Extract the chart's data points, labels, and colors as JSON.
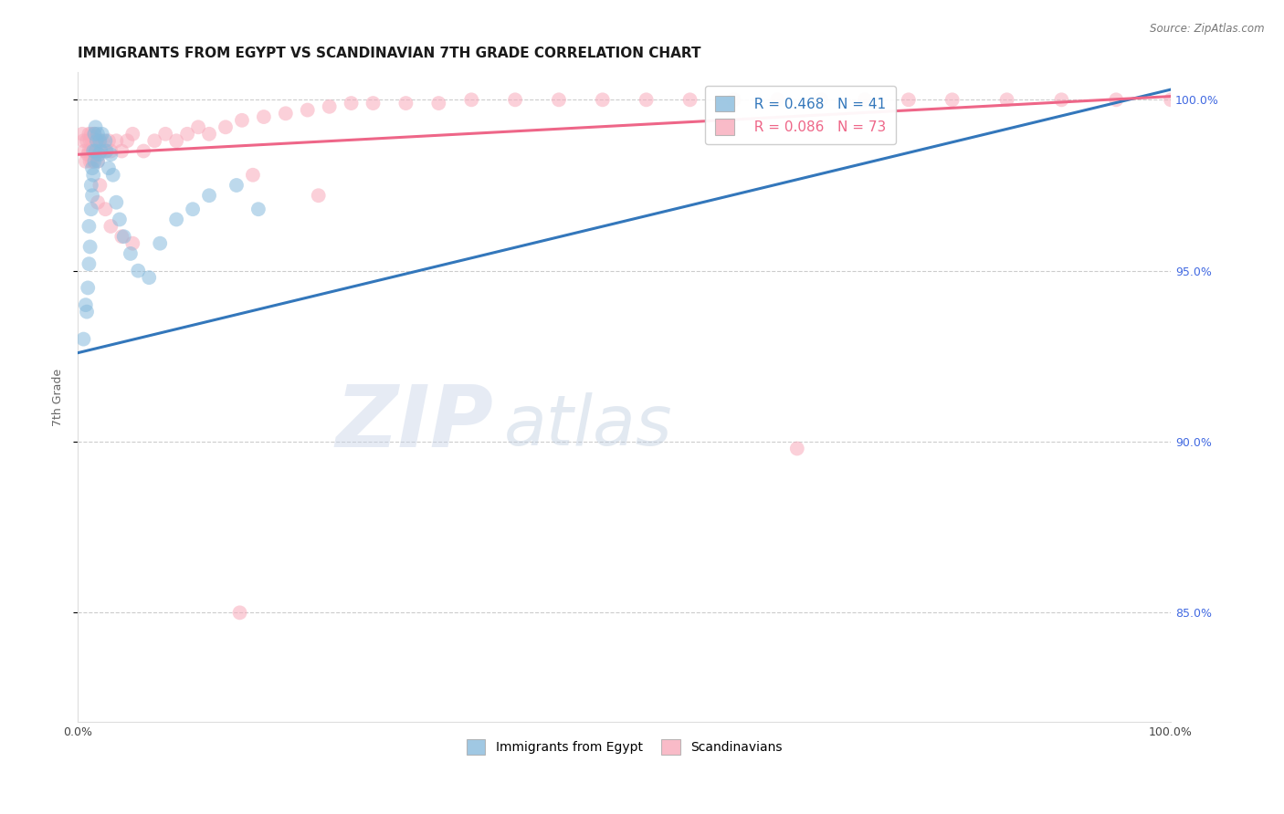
{
  "title": "IMMIGRANTS FROM EGYPT VS SCANDINAVIAN 7TH GRADE CORRELATION CHART",
  "source": "Source: ZipAtlas.com",
  "ylabel": "7th Grade",
  "xlim": [
    0.0,
    1.0
  ],
  "ylim": [
    0.818,
    1.008
  ],
  "yticks": [
    0.85,
    0.9,
    0.95,
    1.0
  ],
  "ytick_labels": [
    "85.0%",
    "90.0%",
    "95.0%",
    "100.0%"
  ],
  "legend_r_egypt": "R = 0.468",
  "legend_n_egypt": "N = 41",
  "legend_r_scand": "R = 0.086",
  "legend_n_scand": "N = 73",
  "egypt_color": "#88bbdd",
  "scand_color": "#f8aabb",
  "egypt_line_color": "#3377bb",
  "scand_line_color": "#ee6688",
  "egypt_line": [
    [
      0.0,
      0.926
    ],
    [
      1.0,
      1.003
    ]
  ],
  "scand_line": [
    [
      0.0,
      0.984
    ],
    [
      1.0,
      1.001
    ]
  ],
  "egypt_dots_x": [
    0.005,
    0.007,
    0.008,
    0.009,
    0.01,
    0.01,
    0.011,
    0.012,
    0.012,
    0.013,
    0.013,
    0.014,
    0.014,
    0.015,
    0.015,
    0.016,
    0.016,
    0.017,
    0.018,
    0.018,
    0.019,
    0.02,
    0.021,
    0.022,
    0.025,
    0.026,
    0.028,
    0.03,
    0.032,
    0.035,
    0.038,
    0.042,
    0.048,
    0.055,
    0.065,
    0.075,
    0.09,
    0.105,
    0.12,
    0.145,
    0.165
  ],
  "egypt_dots_y": [
    0.93,
    0.94,
    0.938,
    0.945,
    0.952,
    0.963,
    0.957,
    0.968,
    0.975,
    0.972,
    0.98,
    0.978,
    0.985,
    0.982,
    0.99,
    0.985,
    0.992,
    0.988,
    0.99,
    0.982,
    0.984,
    0.988,
    0.985,
    0.99,
    0.988,
    0.985,
    0.98,
    0.984,
    0.978,
    0.97,
    0.965,
    0.96,
    0.955,
    0.95,
    0.948,
    0.958,
    0.965,
    0.968,
    0.972,
    0.975,
    0.968
  ],
  "scand_dots_x": [
    0.004,
    0.005,
    0.006,
    0.007,
    0.008,
    0.009,
    0.01,
    0.01,
    0.011,
    0.011,
    0.012,
    0.012,
    0.013,
    0.013,
    0.014,
    0.015,
    0.015,
    0.016,
    0.017,
    0.018,
    0.019,
    0.02,
    0.022,
    0.025,
    0.028,
    0.03,
    0.035,
    0.04,
    0.045,
    0.05,
    0.06,
    0.07,
    0.08,
    0.09,
    0.1,
    0.11,
    0.12,
    0.135,
    0.15,
    0.17,
    0.19,
    0.21,
    0.23,
    0.25,
    0.27,
    0.3,
    0.33,
    0.36,
    0.4,
    0.44,
    0.48,
    0.52,
    0.56,
    0.6,
    0.64,
    0.68,
    0.72,
    0.76,
    0.8,
    0.85,
    0.9,
    0.95,
    1.0,
    0.148,
    0.658,
    0.02,
    0.025,
    0.03,
    0.018,
    0.04,
    0.05,
    0.16,
    0.22
  ],
  "scand_dots_y": [
    0.99,
    0.988,
    0.985,
    0.982,
    0.988,
    0.984,
    0.99,
    0.985,
    0.988,
    0.982,
    0.99,
    0.985,
    0.988,
    0.982,
    0.985,
    0.99,
    0.984,
    0.988,
    0.985,
    0.982,
    0.988,
    0.985,
    0.988,
    0.985,
    0.988,
    0.985,
    0.988,
    0.985,
    0.988,
    0.99,
    0.985,
    0.988,
    0.99,
    0.988,
    0.99,
    0.992,
    0.99,
    0.992,
    0.994,
    0.995,
    0.996,
    0.997,
    0.998,
    0.999,
    0.999,
    0.999,
    0.999,
    1.0,
    1.0,
    1.0,
    1.0,
    1.0,
    1.0,
    1.0,
    1.0,
    1.0,
    1.0,
    1.0,
    1.0,
    1.0,
    1.0,
    1.0,
    1.0,
    0.85,
    0.898,
    0.975,
    0.968,
    0.963,
    0.97,
    0.96,
    0.958,
    0.978,
    0.972
  ],
  "watermark_zip": "ZIP",
  "watermark_atlas": "atlas",
  "background_color": "#ffffff",
  "grid_color": "#cccccc",
  "title_fontsize": 11,
  "axis_label_fontsize": 9,
  "tick_fontsize": 9,
  "legend_fontsize": 11,
  "right_tick_color": "#4169E1"
}
